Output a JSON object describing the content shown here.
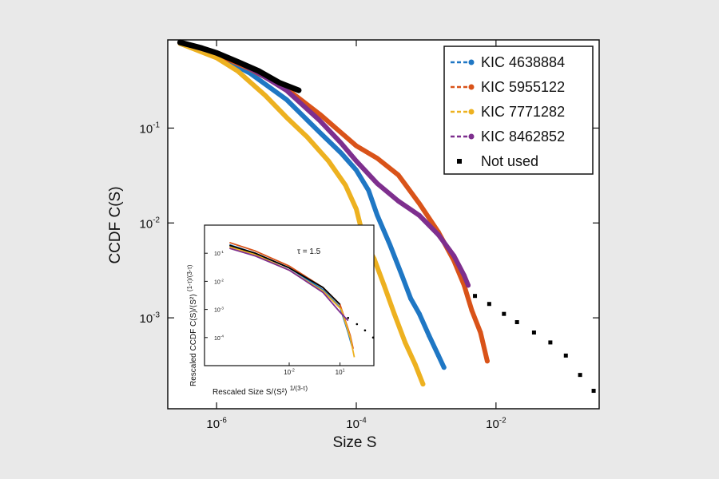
{
  "chart_data": [
    {
      "type": "line",
      "xlabel": "Size S",
      "ylabel": "CCDF C(S)",
      "xscale": "log",
      "yscale": "log",
      "xlim": [
        2e-07,
        0.3
      ],
      "ylim": [
        0.00011,
        0.85
      ],
      "xticks": [
        {
          "value": 1e-06,
          "base": "10",
          "exp": "-6"
        },
        {
          "value": 0.0001,
          "base": "10",
          "exp": "-4"
        },
        {
          "value": 0.01,
          "base": "10",
          "exp": "-2"
        }
      ],
      "yticks": [
        {
          "value": 0.1,
          "base": "10",
          "exp": "-1"
        },
        {
          "value": 0.01,
          "base": "10",
          "exp": "-2"
        },
        {
          "value": 0.001,
          "base": "10",
          "exp": "-3"
        }
      ],
      "legend_position": "top-right",
      "series": [
        {
          "name": "KIC 4638884",
          "color": "#1f77c4",
          "style": "dashed-markers",
          "points": [
            [
              3e-07,
              0.78
            ],
            [
              1e-06,
              0.58
            ],
            [
              3e-06,
              0.38
            ],
            [
              1e-05,
              0.2
            ],
            [
              3e-05,
              0.09
            ],
            [
              6e-05,
              0.055
            ],
            [
              0.0001,
              0.036
            ],
            [
              0.00015,
              0.022
            ],
            [
              0.0002,
              0.012
            ],
            [
              0.0003,
              0.006
            ],
            [
              0.00045,
              0.0028
            ],
            [
              0.0006,
              0.0016
            ],
            [
              0.0008,
              0.0011
            ],
            [
              0.0011,
              0.00065
            ],
            [
              0.0015,
              0.0004
            ],
            [
              0.0018,
              0.0003
            ]
          ]
        },
        {
          "name": "KIC 5955122",
          "color": "#d95319",
          "style": "dashed-markers",
          "points": [
            [
              3e-07,
              0.78
            ],
            [
              1e-06,
              0.6
            ],
            [
              3e-06,
              0.42
            ],
            [
              1e-05,
              0.26
            ],
            [
              3e-05,
              0.14
            ],
            [
              6e-05,
              0.09
            ],
            [
              0.0001,
              0.065
            ],
            [
              0.0002,
              0.048
            ],
            [
              0.0004,
              0.032
            ],
            [
              0.0008,
              0.016
            ],
            [
              0.0015,
              0.008
            ],
            [
              0.0025,
              0.004
            ],
            [
              0.0035,
              0.0022
            ],
            [
              0.0045,
              0.0012
            ],
            [
              0.006,
              0.0007
            ],
            [
              0.0075,
              0.00035
            ]
          ]
        },
        {
          "name": "KIC 7771282",
          "color": "#edb120",
          "style": "dashed-markers",
          "points": [
            [
              3e-07,
              0.78
            ],
            [
              1e-06,
              0.55
            ],
            [
              2e-06,
              0.4
            ],
            [
              5e-06,
              0.22
            ],
            [
              1e-05,
              0.13
            ],
            [
              2e-05,
              0.08
            ],
            [
              4e-05,
              0.045
            ],
            [
              7e-05,
              0.025
            ],
            [
              0.0001,
              0.014
            ],
            [
              0.00013,
              0.0065
            ],
            [
              0.00018,
              0.0042
            ],
            [
              0.00025,
              0.0022
            ],
            [
              0.00035,
              0.0011
            ],
            [
              0.0005,
              0.00055
            ],
            [
              0.0007,
              0.00032
            ],
            [
              0.0009,
              0.0002
            ]
          ]
        },
        {
          "name": "KIC 8462852",
          "color": "#7e2f8e",
          "style": "dashed-markers",
          "points": [
            [
              3e-07,
              0.8
            ],
            [
              1e-06,
              0.62
            ],
            [
              2e-06,
              0.5
            ],
            [
              4e-06,
              0.38
            ],
            [
              1e-05,
              0.25
            ],
            [
              3e-05,
              0.12
            ],
            [
              6e-05,
              0.07
            ],
            [
              0.0001,
              0.045
            ],
            [
              0.0002,
              0.026
            ],
            [
              0.0004,
              0.017
            ],
            [
              0.0008,
              0.012
            ],
            [
              0.0015,
              0.0075
            ],
            [
              0.0025,
              0.0045
            ],
            [
              0.0035,
              0.0028
            ],
            [
              0.004,
              0.0022
            ]
          ]
        },
        {
          "name": "Not used",
          "color": "#000000",
          "style": "markers",
          "points": [
            [
              3e-07,
              0.8
            ],
            [
              6e-07,
              0.7
            ],
            [
              1e-06,
              0.62
            ],
            [
              2e-06,
              0.5
            ],
            [
              4e-06,
              0.4
            ],
            [
              8e-06,
              0.3
            ],
            [
              1.5e-05,
              0.25
            ],
            [
              0.005,
              0.0017
            ],
            [
              0.008,
              0.0014
            ],
            [
              0.013,
              0.0011
            ],
            [
              0.02,
              0.0009
            ],
            [
              0.035,
              0.0007
            ],
            [
              0.06,
              0.00055
            ],
            [
              0.1,
              0.0004
            ],
            [
              0.16,
              0.00025
            ],
            [
              0.25,
              0.00017
            ]
          ]
        }
      ]
    },
    {
      "type": "line",
      "xlabel": "Rescaled Size S/⟨S²⟩",
      "xlabel_exp": "1/(3-τ)",
      "ylabel": "Rescaled CCDF C(S)/⟨S²⟩",
      "ylabel_exp": "(1-τ)/(3-τ)",
      "annotation": "τ = 1.5",
      "xscale": "log",
      "yscale": "log",
      "xlim": [
        1e-07,
        1000.0
      ],
      "ylim": [
        1e-05,
        1
      ],
      "xticks": [
        {
          "value": 0.01,
          "base": "10",
          "exp": "-2"
        },
        {
          "value": 10.0,
          "base": "10",
          "exp": "1"
        }
      ],
      "yticks": [
        {
          "value": 0.1,
          "base": "10",
          "exp": "-1"
        },
        {
          "value": 0.01,
          "base": "10",
          "exp": "-2"
        },
        {
          "value": 0.001,
          "base": "10",
          "exp": "-3"
        },
        {
          "value": 0.0001,
          "base": "10",
          "exp": "-4"
        }
      ],
      "series": [
        {
          "color": "#1f77c4",
          "style": "line",
          "points": [
            [
              3e-06,
              0.2
            ],
            [
              0.0001,
              0.1
            ],
            [
              0.01,
              0.03
            ],
            [
              1,
              0.005
            ],
            [
              10,
              0.0012
            ],
            [
              30,
              0.00015
            ],
            [
              50,
              5e-05
            ]
          ]
        },
        {
          "color": "#d95319",
          "style": "line",
          "points": [
            [
              3e-06,
              0.24
            ],
            [
              0.0001,
              0.12
            ],
            [
              0.01,
              0.035
            ],
            [
              1,
              0.006
            ],
            [
              10,
              0.0015
            ],
            [
              40,
              0.00012
            ],
            [
              60,
              4e-05
            ]
          ]
        },
        {
          "color": "#edb120",
          "style": "line",
          "points": [
            [
              3e-06,
              0.17
            ],
            [
              0.0001,
              0.09
            ],
            [
              0.01,
              0.025
            ],
            [
              1,
              0.0045
            ],
            [
              12,
              0.001
            ],
            [
              40,
              0.0001
            ],
            [
              70,
              2e-05
            ]
          ]
        },
        {
          "color": "#7e2f8e",
          "style": "line",
          "points": [
            [
              3e-06,
              0.15
            ],
            [
              0.0001,
              0.08
            ],
            [
              0.01,
              0.025
            ],
            [
              1,
              0.004
            ],
            [
              10,
              0.0008
            ],
            [
              30,
              0.0004
            ]
          ]
        },
        {
          "color": "#000000",
          "style": "line",
          "points": [
            [
              3e-06,
              0.19
            ],
            [
              0.0001,
              0.1
            ],
            [
              0.01,
              0.03
            ],
            [
              1,
              0.006
            ],
            [
              10,
              0.0015
            ]
          ]
        },
        {
          "color": "#000000",
          "style": "dotted",
          "points": [
            [
              30,
              0.0005
            ],
            [
              100,
              0.0003
            ],
            [
              300,
              0.00018
            ],
            [
              900,
              0.0001
            ]
          ]
        }
      ]
    }
  ]
}
